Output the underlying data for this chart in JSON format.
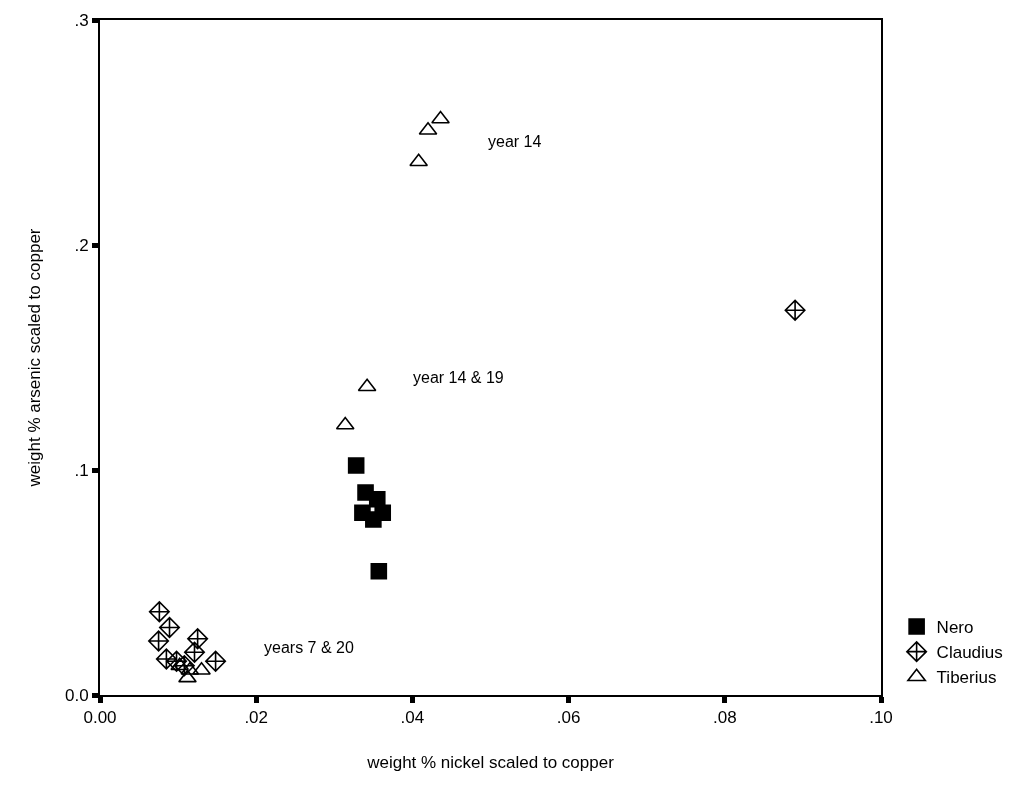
{
  "chart_data": {
    "type": "scatter",
    "xlabel": "weight % nickel scaled to copper",
    "ylabel": "weight % arsenic scaled to copper",
    "xlim": [
      0,
      0.1
    ],
    "xticks": [
      {
        "value": 0,
        "label": "0.00"
      },
      {
        "value": 0.02,
        "label": ".02"
      },
      {
        "value": 0.04,
        "label": ".04"
      },
      {
        "value": 0.06,
        "label": ".06"
      },
      {
        "value": 0.08,
        "label": ".08"
      },
      {
        "value": 0.1,
        "label": ".10"
      }
    ],
    "ylim": [
      0,
      0.3
    ],
    "yticks": [
      {
        "value": 0,
        "label": "0.0"
      },
      {
        "value": 0.1,
        "label": ".1"
      },
      {
        "value": 0.2,
        "label": ".2"
      },
      {
        "value": 0.3,
        "label": ".3"
      }
    ],
    "legend": "right",
    "series": [
      {
        "name": "Nero",
        "color": "#000000",
        "marker": "square",
        "x": [
          0.0328,
          0.034,
          0.0355,
          0.0336,
          0.035,
          0.0362,
          0.0357
        ],
        "values": [
          0.102,
          0.09,
          0.087,
          0.081,
          0.078,
          0.081,
          0.055
        ]
      },
      {
        "name": "Claudius",
        "color": "#000000",
        "marker": "diamond",
        "x": [
          0.0076,
          0.0089,
          0.0075,
          0.0125,
          0.0085,
          0.0121,
          0.0148,
          0.0108,
          0.0098,
          0.089
        ],
        "values": [
          0.037,
          0.03,
          0.024,
          0.025,
          0.016,
          0.019,
          0.015,
          0.013,
          0.015,
          0.171
        ]
      },
      {
        "name": "Tiberius",
        "color": "#000000",
        "marker": "triangle",
        "x": [
          0.0436,
          0.042,
          0.0408,
          0.0342,
          0.0314,
          0.0112,
          0.013,
          0.0102,
          0.0115
        ],
        "values": [
          0.256,
          0.251,
          0.237,
          0.137,
          0.12,
          0.0076,
          0.011,
          0.013,
          0.011
        ]
      }
    ],
    "annotations": [
      "year 14",
      "year 14 & 19",
      "years 7 & 20"
    ]
  }
}
